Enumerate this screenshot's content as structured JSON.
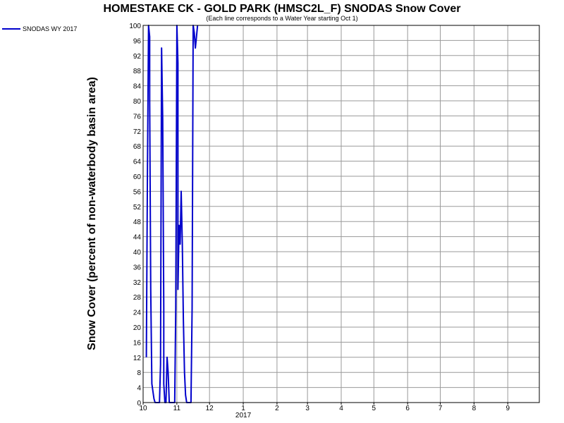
{
  "chart_data": {
    "type": "line",
    "title": "HOMESTAKE CK - GOLD PARK (HMSC2L_F) SNODAS Snow Cover",
    "subtitle": "(Each line corresponds to a Water Year starting Oct 1)",
    "ylabel": "Snow Cover (percent of non-waterbody basin area)",
    "xlabel": "",
    "ylim": [
      0,
      100
    ],
    "yticks": [
      0,
      4,
      8,
      12,
      16,
      20,
      24,
      28,
      32,
      36,
      40,
      44,
      48,
      52,
      56,
      60,
      64,
      68,
      72,
      76,
      80,
      84,
      88,
      92,
      96,
      100
    ],
    "x_axis": {
      "type": "date",
      "range": [
        "2016-10-01",
        "2017-09-30"
      ],
      "ticks": [
        {
          "label": "10",
          "date": "2016-10-01"
        },
        {
          "label": "11",
          "date": "2016-11-01"
        },
        {
          "label": "12",
          "date": "2016-12-01"
        },
        {
          "label": "1",
          "date": "2017-01-01"
        },
        {
          "label": "2",
          "date": "2017-02-01"
        },
        {
          "label": "3",
          "date": "2017-03-01"
        },
        {
          "label": "4",
          "date": "2017-04-01"
        },
        {
          "label": "5",
          "date": "2017-05-01"
        },
        {
          "label": "6",
          "date": "2017-06-01"
        },
        {
          "label": "7",
          "date": "2017-07-01"
        },
        {
          "label": "8",
          "date": "2017-08-01"
        },
        {
          "label": "9",
          "date": "2017-09-01"
        }
      ],
      "year_label": {
        "text": "2017",
        "date": "2017-01-01"
      }
    },
    "grid": true,
    "legend": {
      "placement": "top-left",
      "entries": [
        "SNODAS WY 2017"
      ]
    },
    "series": [
      {
        "name": "SNODAS WY 2017",
        "color": "#0000cc",
        "points": [
          [
            "2016-10-04",
            12
          ],
          [
            "2016-10-05",
            63
          ],
          [
            "2016-10-06",
            100
          ],
          [
            "2016-10-07",
            97
          ],
          [
            "2016-10-07",
            80
          ],
          [
            "2016-10-08",
            30
          ],
          [
            "2016-10-09",
            5
          ],
          [
            "2016-10-10",
            3
          ],
          [
            "2016-10-11",
            1
          ],
          [
            "2016-10-12",
            0
          ],
          [
            "2016-10-16",
            0
          ],
          [
            "2016-10-17",
            10
          ],
          [
            "2016-10-18",
            94
          ],
          [
            "2016-10-19",
            75
          ],
          [
            "2016-10-20",
            25
          ],
          [
            "2016-10-20",
            5
          ],
          [
            "2016-10-21",
            0
          ],
          [
            "2016-10-22",
            0
          ],
          [
            "2016-10-23",
            12
          ],
          [
            "2016-10-24",
            8
          ],
          [
            "2016-10-25",
            0
          ],
          [
            "2016-10-30",
            0
          ],
          [
            "2016-10-31",
            25
          ],
          [
            "2016-11-01",
            100
          ],
          [
            "2016-11-02",
            90
          ],
          [
            "2016-11-02",
            30
          ],
          [
            "2016-11-03",
            47
          ],
          [
            "2016-11-04",
            42
          ],
          [
            "2016-11-05",
            56
          ],
          [
            "2016-11-06",
            42
          ],
          [
            "2016-11-07",
            22
          ],
          [
            "2016-11-08",
            8
          ],
          [
            "2016-11-09",
            2
          ],
          [
            "2016-11-10",
            0
          ],
          [
            "2016-11-14",
            0
          ],
          [
            "2016-11-15",
            25
          ],
          [
            "2016-11-16",
            100
          ],
          [
            "2016-11-17",
            98
          ],
          [
            "2016-11-18",
            94
          ],
          [
            "2016-11-19",
            97
          ],
          [
            "2016-11-20",
            100
          ]
        ]
      }
    ]
  }
}
